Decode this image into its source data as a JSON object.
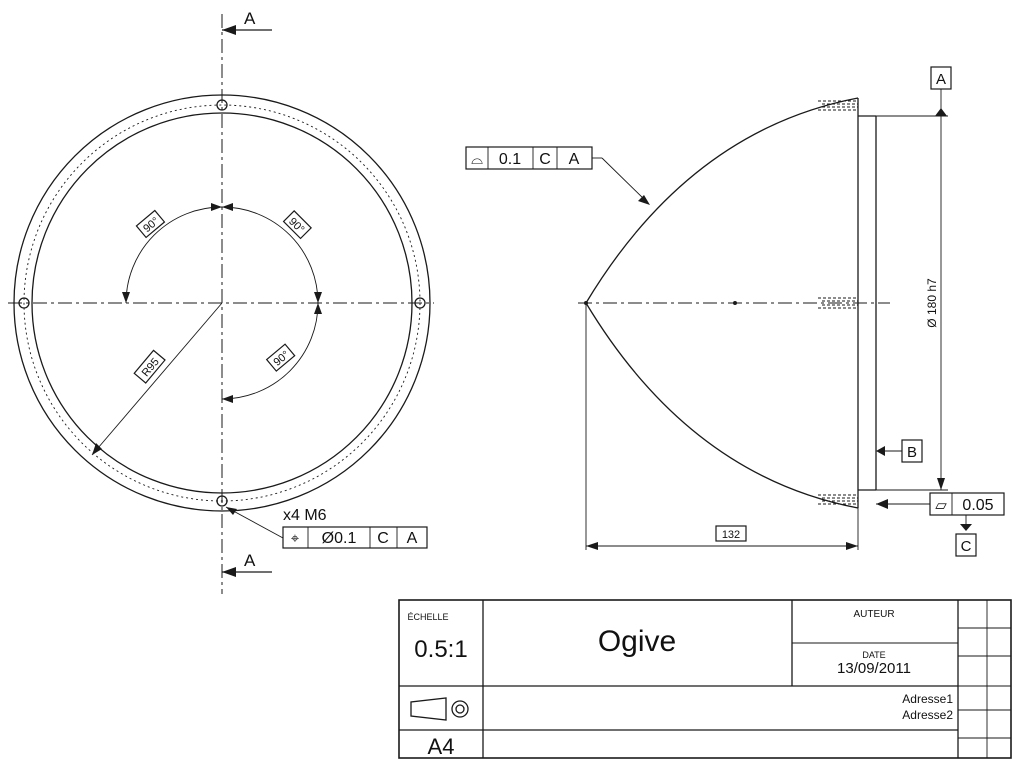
{
  "front_view": {
    "section_letter_top": "A",
    "section_letter_bottom": "A",
    "angle_1": "90°",
    "angle_2": "90°",
    "angle_3": "90°",
    "radius": "R95",
    "holes_callout": "x4 M6",
    "position_tolerance": {
      "symbol": "⌖",
      "value": "Ø0.1",
      "datum_1": "C",
      "datum_2": "A"
    }
  },
  "side_view": {
    "profile_tolerance": {
      "symbol": "⌓",
      "value": "0.1",
      "datum_1": "C",
      "datum_2": "A"
    },
    "datum_a": "A",
    "datum_b": "B",
    "datum_c": "C",
    "diameter": "Ø 180 h7",
    "length": "132",
    "flatness_tolerance": {
      "symbol": "▱",
      "value": "0.05"
    }
  },
  "title_block": {
    "scale_label": "ÉCHELLE",
    "scale_value": "0.5:1",
    "title": "Ogive",
    "author_label": "AUTEUR",
    "date_label": "DATE",
    "date_value": "13/09/2011",
    "address_1": "Adresse1",
    "address_2": "Adresse2",
    "sheet_size": "A4"
  }
}
